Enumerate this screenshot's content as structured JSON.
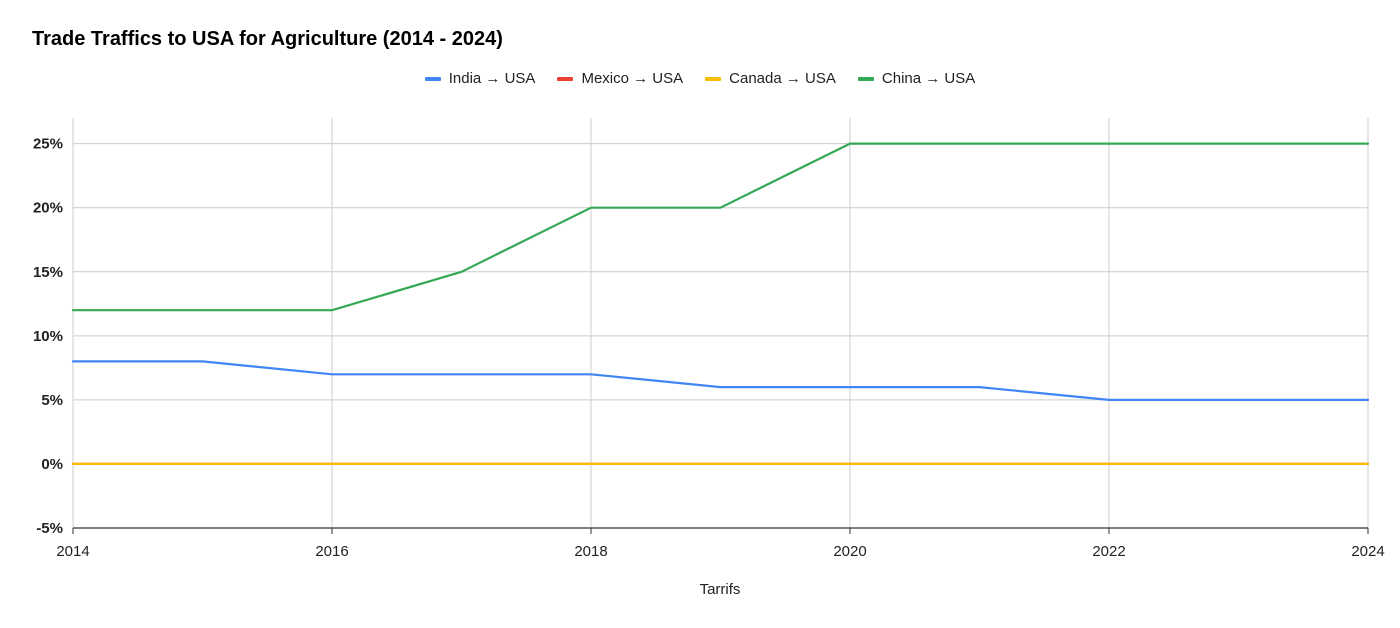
{
  "chart_data": {
    "type": "line",
    "title": "Trade Traffics to USA for Agriculture (2014 - 2024)",
    "xlabel": "Tarrifs",
    "ylabel": "",
    "x": [
      2014,
      2015,
      2016,
      2017,
      2018,
      2019,
      2020,
      2021,
      2022,
      2023,
      2024
    ],
    "xlim": [
      2014,
      2024
    ],
    "x_ticks": [
      2014,
      2016,
      2018,
      2020,
      2022,
      2024
    ],
    "x_tick_labels": [
      "2014",
      "2016",
      "2018",
      "2020",
      "2022",
      "2024"
    ],
    "ylim": [
      -5,
      27
    ],
    "y_ticks": [
      -5,
      0,
      5,
      10,
      15,
      20,
      25
    ],
    "y_tick_labels": [
      "-5%",
      "0%",
      "5%",
      "10%",
      "15%",
      "20%",
      "25%"
    ],
    "grid": true,
    "legend_position": "top-center",
    "series": [
      {
        "name": "India → USA",
        "color": "#4285f4",
        "values": [
          8,
          8,
          7,
          7,
          7,
          6,
          6,
          6,
          5,
          5,
          5
        ]
      },
      {
        "name": "Mexico → USA",
        "color": "#ea4335",
        "values": [
          0,
          0,
          0,
          0,
          0,
          0,
          0,
          0,
          0,
          0,
          0
        ]
      },
      {
        "name": "Canada → USA",
        "color": "#fbbc04",
        "values": [
          0,
          0,
          0,
          0,
          0,
          0,
          0,
          0,
          0,
          0,
          0
        ]
      },
      {
        "name": "China → USA",
        "color": "#34a853",
        "values": [
          12,
          12,
          12,
          15,
          20,
          20,
          25,
          25,
          25,
          25,
          25
        ]
      }
    ]
  }
}
